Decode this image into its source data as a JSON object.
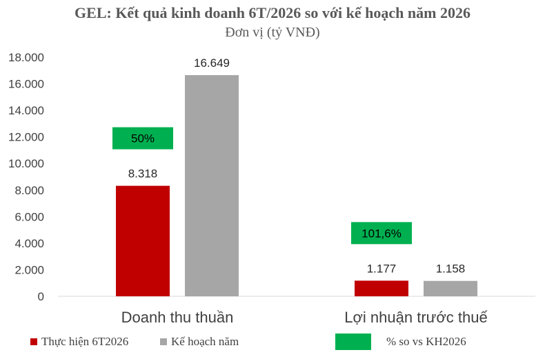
{
  "chart_data": {
    "type": "bar",
    "title": "GEL: Kết quả kinh doanh 6T/2026 so với kế hoạch năm 2026",
    "subtitle": "Đơn vị (tỷ VNĐ)",
    "xlabel": "",
    "ylabel": "",
    "ylim": [
      0,
      18000
    ],
    "yticks": [
      "0",
      "2.000",
      "4.000",
      "6.000",
      "8.000",
      "10.000",
      "12.000",
      "14.000",
      "16.000",
      "18.000"
    ],
    "categories": [
      "Doanh thu thuần",
      "Lợi nhuận trước thuế"
    ],
    "series": [
      {
        "name": "Thực hiện 6T2026",
        "color": "#C00000",
        "values": [
          8318,
          1177
        ],
        "labels": [
          "8.318",
          "1.177"
        ]
      },
      {
        "name": "Kế hoạch năm",
        "color": "#A6A6A6",
        "values": [
          16649,
          1158
        ],
        "labels": [
          "16.649",
          "1.158"
        ]
      }
    ],
    "percent_series": {
      "name": "% so vs KH2026",
      "color": "#00B050",
      "labels": [
        "50%",
        "101,6%"
      ]
    },
    "grid": false,
    "legend_position": "bottom"
  }
}
